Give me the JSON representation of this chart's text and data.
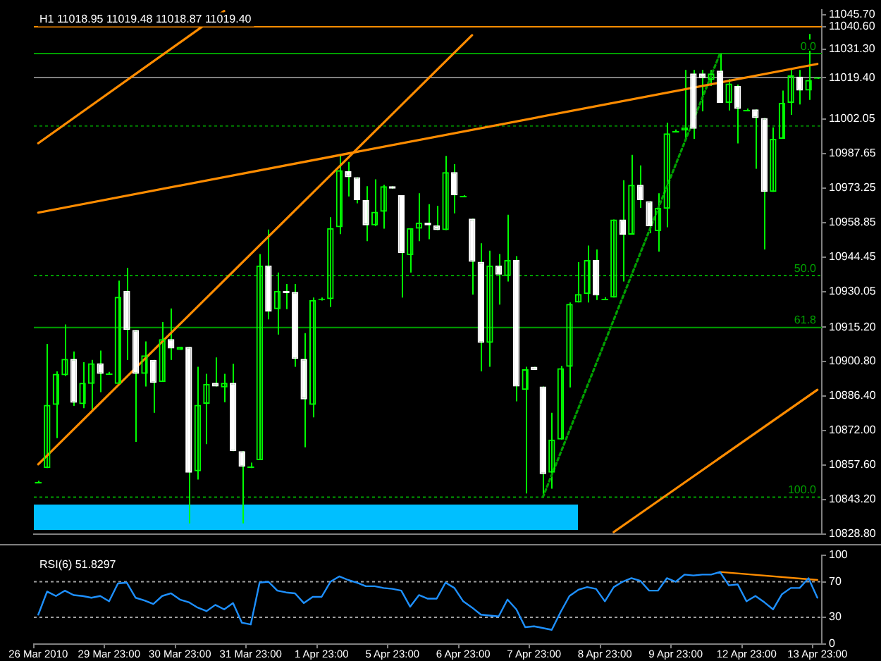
{
  "chart_data": [
    {
      "type": "candlestick",
      "title": "H1 11018.95 11019.48 11018.87 11019.40",
      "ohlc": [
        [
          10850.6,
          10851.0,
          10850.2,
          10850.6
        ],
        [
          10856.3,
          10908.2,
          10856.3,
          10882.7
        ],
        [
          10882.7,
          10896.7,
          10868.8,
          10895.7
        ],
        [
          10895.1,
          10916.3,
          10894.8,
          10901.9
        ],
        [
          10901.9,
          10905.0,
          10882.3,
          10883.6
        ],
        [
          10883.0,
          10900.5,
          10881.3,
          10891.9
        ],
        [
          10891.5,
          10901.5,
          10880.7,
          10900.1
        ],
        [
          10900.1,
          10905.4,
          10888.0,
          10895.7
        ],
        [
          10896.1,
          10896.5,
          10895.3,
          10896.1
        ],
        [
          10891.5,
          10934.6,
          10891.5,
          10927.8
        ],
        [
          10930.3,
          10940.0,
          10901.5,
          10914.0
        ],
        [
          10914.0,
          10914.0,
          10867.3,
          10895.7
        ],
        [
          10895.7,
          10909.2,
          10890.4,
          10903.4
        ],
        [
          10901.5,
          10901.5,
          10879.4,
          10891.9
        ],
        [
          10892.3,
          10917.3,
          10892.3,
          10910.2
        ],
        [
          10910.2,
          10923.0,
          10901.5,
          10906.3
        ],
        [
          10905.7,
          10906.9,
          10905.7,
          10906.9
        ],
        [
          10906.9,
          10906.9,
          10833.2,
          10854.4
        ],
        [
          10855.0,
          10898.6,
          10851.5,
          10882.7
        ],
        [
          10883.2,
          10895.7,
          10866.3,
          10891.5
        ],
        [
          10891.9,
          10902.5,
          10890.4,
          10890.4
        ],
        [
          10890.0,
          10895.7,
          10883.8,
          10891.9
        ],
        [
          10891.9,
          10899.9,
          10863.4,
          10863.4
        ],
        [
          10863.4,
          10863.4,
          10833.2,
          10856.9
        ],
        [
          10856.9,
          10858.6,
          10856.3,
          10856.9
        ],
        [
          10859.6,
          10945.7,
          10859.6,
          10940.9
        ],
        [
          10940.9,
          10955.9,
          10918.4,
          10921.7
        ],
        [
          10922.7,
          10938.0,
          10912.1,
          10930.3
        ],
        [
          10930.3,
          10933.2,
          10922.7,
          10929.4
        ],
        [
          10929.9,
          10933.2,
          10898.6,
          10901.9
        ],
        [
          10901.9,
          10912.7,
          10865.0,
          10885.0
        ],
        [
          10882.7,
          10927.5,
          10877.5,
          10926.5
        ],
        [
          10926.5,
          10927.5,
          10926.3,
          10927.1
        ],
        [
          10926.9,
          10961.1,
          10923.6,
          10956.5
        ],
        [
          10956.9,
          10987.1,
          10954.0,
          10980.7
        ],
        [
          10980.3,
          10984.2,
          10969.8,
          10977.8
        ],
        [
          10977.8,
          10977.8,
          10966.9,
          10968.2
        ],
        [
          10968.2,
          10974.0,
          10951.1,
          10957.7
        ],
        [
          10957.7,
          10976.9,
          10957.3,
          10963.4
        ],
        [
          10963.4,
          10974.6,
          10956.3,
          10974.0
        ],
        [
          10974.0,
          10974.0,
          10973.0,
          10973.0
        ],
        [
          10970.3,
          10970.3,
          10927.5,
          10946.1
        ],
        [
          10945.3,
          10956.5,
          10938.0,
          10956.5
        ],
        [
          10956.3,
          10971.1,
          10951.1,
          10958.8
        ],
        [
          10958.8,
          10966.5,
          10951.9,
          10957.7
        ],
        [
          10957.7,
          10965.9,
          10955.7,
          10955.7
        ],
        [
          10955.7,
          10986.7,
          10955.7,
          10979.9
        ],
        [
          10979.9,
          10983.2,
          10962.7,
          10970.3
        ],
        [
          10969.9,
          10970.3,
          10969.5,
          10969.9
        ],
        [
          10960.5,
          10960.5,
          10928.8,
          10942.5
        ],
        [
          10942.5,
          10950.2,
          10896.7,
          10908.6
        ],
        [
          10908.6,
          10947.1,
          10898.6,
          10940.9
        ],
        [
          10940.9,
          10945.7,
          10924.6,
          10937.1
        ],
        [
          10936.5,
          10962.1,
          10934.2,
          10943.2
        ],
        [
          10943.2,
          10944.8,
          10884.2,
          10890.4
        ],
        [
          10889.0,
          10898.6,
          10845.7,
          10897.6
        ],
        [
          10898.6,
          10898.6,
          10897.3,
          10897.3
        ],
        [
          10890.4,
          10890.4,
          10844.2,
          10853.8
        ],
        [
          10854.4,
          10879.4,
          10847.7,
          10868.2
        ],
        [
          10868.2,
          10899.0,
          10868.2,
          10898.0
        ],
        [
          10898.6,
          10925.5,
          10890.0,
          10924.9
        ],
        [
          10925.5,
          10942.3,
          10925.5,
          10929.0
        ],
        [
          10929.0,
          10949.2,
          10925.5,
          10943.2
        ],
        [
          10943.2,
          10947.6,
          10926.5,
          10928.4
        ],
        [
          10927.3,
          10927.7,
          10926.9,
          10927.3
        ],
        [
          10927.5,
          10960.1,
          10927.5,
          10960.1
        ],
        [
          10960.1,
          10976.5,
          10934.2,
          10953.8
        ],
        [
          10953.8,
          10987.1,
          10953.8,
          10974.6
        ],
        [
          10974.6,
          10982.7,
          10965.0,
          10968.2
        ],
        [
          10967.8,
          10967.8,
          10954.4,
          10957.3
        ],
        [
          10955.3,
          10971.1,
          10946.7,
          10965.0
        ],
        [
          10964.6,
          11000.5,
          10956.9,
          10996.1
        ],
        [
          10997.3,
          10997.7,
          10996.9,
          10997.3
        ],
        [
          10997.3,
          11022.6,
          10993.4,
          10998.6
        ],
        [
          11021.1,
          11022.6,
          10993.8,
          10998.0
        ],
        [
          11021.1,
          11022.6,
          11005.3,
          11019.2
        ],
        [
          11018.4,
          11022.6,
          11015.9,
          11021.1
        ],
        [
          11022.3,
          11029.4,
          11008.8,
          11008.8
        ],
        [
          11008.8,
          11018.8,
          11005.7,
          11016.9
        ],
        [
          11015.9,
          11016.5,
          10991.9,
          11006.3
        ],
        [
          11006.1,
          11006.5,
          11005.7,
          11006.1
        ],
        [
          11006.1,
          11006.1,
          10981.3,
          11002.5
        ],
        [
          11002.5,
          11002.5,
          10947.6,
          10971.7
        ],
        [
          10971.7,
          10998.6,
          10971.7,
          10993.8
        ],
        [
          10993.8,
          11014.0,
          10993.8,
          11008.8
        ],
        [
          11008.8,
          11022.6,
          11003.8,
          11020.3
        ],
        [
          11019.8,
          11022.6,
          11008.2,
          11014.0
        ],
        [
          11014.0,
          11037.6,
          11010.1,
          11018.4
        ],
        [
          11018.95,
          11019.48,
          11018.87,
          11019.4
        ]
      ],
      "color": "#00ff00",
      "colors": [
        "#00ff00",
        "#00ff00",
        "#00ff00",
        "#00ff00",
        "#ffffff",
        "#00ff00",
        "#00ff00",
        "#ffffff",
        "#00ff00",
        "#00ff00",
        "#ffffff",
        "#ffffff",
        "#00ff00",
        "#ffffff",
        "#00ff00",
        "#ffffff",
        "#00ff00",
        "#ffffff",
        "#00ff00",
        "#00ff00",
        "#ffffff",
        "#00ff00",
        "#ffffff",
        "#ffffff",
        "#00ff00",
        "#00ff00",
        "#ffffff",
        "#00ff00",
        "#ffffff",
        "#ffffff",
        "#ffffff",
        "#00ff00",
        "#00ff00",
        "#00ff00",
        "#00ff00",
        "#ffffff",
        "#ffffff",
        "#ffffff",
        "#00ff00",
        "#00ff00",
        "#ffffff",
        "#ffffff",
        "#00ff00",
        "#00ff00",
        "#ffffff",
        "#ffffff",
        "#00ff00",
        "#ffffff",
        "#00ff00",
        "#ffffff",
        "#ffffff",
        "#00ff00",
        "#ffffff",
        "#00ff00",
        "#ffffff",
        "#00ff00",
        "#ffffff",
        "#ffffff",
        "#00ff00",
        "#00ff00",
        "#00ff00",
        "#00ff00",
        "#00ff00",
        "#ffffff",
        "#00ff00",
        "#00ff00",
        "#ffffff",
        "#00ff00",
        "#ffffff",
        "#ffffff",
        "#00ff00",
        "#00ff00",
        "#00ff00",
        "#00ff00",
        "#ffffff",
        "#ffffff",
        "#00ff00",
        "#ffffff",
        "#00ff00",
        "#ffffff",
        "#00ff00",
        "#ffffff",
        "#ffffff",
        "#00ff00",
        "#00ff00",
        "#00ff00",
        "#ffffff",
        "#00ff00",
        "#00ff00"
      ],
      "series": [
        {
          "type": "line",
          "color": "#ff8c00",
          "values": [
            10992.0,
            null,
            null,
            null,
            null,
            null,
            null,
            null,
            null,
            null,
            null,
            null,
            null,
            null,
            null,
            null,
            null,
            null,
            null,
            null,
            null,
            11047.2,
            null,
            null,
            null,
            null,
            null,
            null,
            null,
            null,
            null,
            null,
            null,
            null,
            null,
            null,
            null,
            null,
            null,
            null,
            null,
            null,
            null,
            null,
            null,
            null,
            null,
            null,
            null,
            null,
            null,
            null,
            null,
            null,
            null,
            null,
            null,
            null,
            null,
            null,
            null,
            null,
            null,
            null,
            null,
            null,
            null,
            null,
            null,
            null,
            null,
            null,
            null,
            null,
            null,
            null,
            null,
            null,
            null,
            null,
            null,
            null,
            null,
            null,
            null,
            null,
            null,
            null,
            null
          ]
        },
        {
          "type": "line",
          "color": "#ff8c00",
          "values": [
            10857.9,
            null,
            null,
            null,
            null,
            null,
            null,
            null,
            null,
            null,
            null,
            null,
            null,
            null,
            null,
            null,
            null,
            null,
            null,
            null,
            null,
            null,
            null,
            null,
            null,
            null,
            null,
            null,
            null,
            null,
            null,
            null,
            null,
            null,
            null,
            null,
            null,
            null,
            null,
            null,
            null,
            null,
            null,
            null,
            null,
            null,
            null,
            null,
            null,
            11037.1,
            null,
            null,
            null,
            null,
            null,
            null,
            null,
            null,
            null,
            null,
            null,
            null,
            null,
            null,
            null,
            null,
            null,
            null,
            null,
            null,
            null,
            null,
            null,
            null,
            null,
            null,
            null,
            null,
            null,
            null,
            null,
            null,
            null,
            null,
            null,
            null,
            null,
            null,
            null
          ]
        },
        {
          "type": "line",
          "color": "#ff8c00",
          "values": [
            10963.0,
            null,
            null,
            null,
            null,
            null,
            null,
            null,
            null,
            null,
            null,
            null,
            null,
            null,
            null,
            null,
            null,
            null,
            null,
            null,
            null,
            null,
            null,
            null,
            null,
            null,
            null,
            null,
            null,
            null,
            null,
            null,
            null,
            null,
            null,
            null,
            null,
            null,
            null,
            null,
            null,
            null,
            null,
            null,
            null,
            null,
            null,
            null,
            null,
            null,
            null,
            null,
            null,
            null,
            null,
            null,
            null,
            null,
            null,
            null,
            null,
            null,
            null,
            null,
            null,
            null,
            null,
            null,
            null,
            null,
            null,
            null,
            null,
            null,
            null,
            null,
            null,
            null,
            null,
            null,
            null,
            null,
            null,
            null,
            null,
            null,
            null,
            null,
            11025.1
          ]
        },
        {
          "type": "line",
          "color": "#ff8c00",
          "values": [
            null,
            null,
            null,
            null,
            null,
            null,
            null,
            null,
            null,
            null,
            null,
            null,
            null,
            null,
            null,
            null,
            null,
            null,
            null,
            null,
            null,
            null,
            null,
            null,
            null,
            null,
            null,
            null,
            null,
            null,
            null,
            null,
            null,
            null,
            null,
            null,
            null,
            null,
            null,
            null,
            null,
            null,
            null,
            null,
            null,
            null,
            null,
            null,
            null,
            null,
            null,
            null,
            null,
            null,
            null,
            null,
            null,
            null,
            null,
            null,
            null,
            null,
            null,
            null,
            null,
            10829.6,
            null,
            null,
            null,
            null,
            null,
            null,
            null,
            null,
            null,
            null,
            null,
            null,
            null,
            null,
            null,
            null,
            null,
            null,
            null,
            null,
            null,
            null,
            10889.0
          ]
        },
        {
          "type": "line",
          "color": "#00a000",
          "line_style": "dotted",
          "values": [
            null,
            null,
            null,
            null,
            null,
            null,
            null,
            null,
            null,
            null,
            null,
            null,
            null,
            null,
            null,
            null,
            null,
            null,
            null,
            null,
            null,
            null,
            null,
            null,
            null,
            null,
            null,
            null,
            null,
            null,
            null,
            null,
            null,
            null,
            null,
            null,
            null,
            null,
            null,
            null,
            null,
            null,
            null,
            null,
            null,
            null,
            null,
            null,
            null,
            null,
            null,
            null,
            null,
            null,
            null,
            null,
            null,
            10844.2,
            null,
            null,
            null,
            null,
            null,
            null,
            null,
            null,
            null,
            null,
            null,
            null,
            null,
            null,
            null,
            null,
            null,
            null,
            null,
            11029.4,
            null,
            null,
            null,
            null,
            null,
            null,
            null,
            null,
            null,
            null,
            null
          ]
        }
      ],
      "ylim": [
        10828.6,
        11047.8
      ],
      "yticks": [
        {
          "value": 11045.7,
          "label": "11045.70"
        },
        {
          "value": 11040.6,
          "label": "11040.60"
        },
        {
          "value": 11031.3,
          "label": "11031.30"
        },
        {
          "value": 11019.4,
          "label": "11019.40"
        },
        {
          "value": 11002.05,
          "label": "11002.05"
        },
        {
          "value": 10987.65,
          "label": "10987.65"
        },
        {
          "value": 10973.25,
          "label": "10973.25"
        },
        {
          "value": 10958.85,
          "label": "10958.85"
        },
        {
          "value": 10944.45,
          "label": "10944.45"
        },
        {
          "value": 10930.05,
          "label": "10930.05"
        },
        {
          "value": 10915.2,
          "label": "10915.20"
        },
        {
          "value": 10900.8,
          "label": "10900.80"
        },
        {
          "value": 10886.4,
          "label": "10886.40"
        },
        {
          "value": 10872,
          "label": "10872.00"
        },
        {
          "value": 10857.6,
          "label": "10857.60"
        },
        {
          "value": 10843.2,
          "label": "10843.20"
        },
        {
          "value": 10828.8,
          "label": "10828.80"
        }
      ],
      "ref_lines": [
        {
          "axis": "y",
          "value": 11040.6,
          "color": "#ff8c00"
        },
        {
          "axis": "y",
          "value": 11019.4,
          "color": "#808080"
        },
        {
          "axis": "y",
          "value": 10999.2,
          "color": "#008000",
          "line_style": "dotted"
        },
        {
          "axis": "y",
          "value": 11029.4,
          "color": "#00a000"
        },
        {
          "axis": "y",
          "value": 10936.7,
          "color": "#00a000",
          "line_style": "dotted"
        },
        {
          "axis": "y",
          "value": 10915.0,
          "color": "#00a000"
        },
        {
          "axis": "y",
          "value": 10844.2,
          "color": "#00a000",
          "line_style": "dotted"
        }
      ],
      "annotations": [
        {
          "text": "0.0",
          "y": 11029.4
        },
        {
          "text": "50.0",
          "y": 10936.7
        },
        {
          "text": "61.8",
          "y": 10915.0
        },
        {
          "text": "100.0",
          "y": 10844.2
        }
      ],
      "tick_labels": "y"
    },
    {
      "type": "line",
      "title": "RSI(6) 51.8297",
      "categories": [
        "26 Mar 2010",
        null,
        null,
        null,
        null,
        null,
        null,
        null,
        "29 Mar 23:00",
        null,
        null,
        null,
        null,
        null,
        null,
        null,
        "30 Mar 23:00",
        null,
        null,
        null,
        null,
        null,
        null,
        null,
        "31 Mar 23:00",
        null,
        null,
        null,
        null,
        null,
        null,
        null,
        "1 Apr 23:00",
        null,
        null,
        null,
        null,
        null,
        null,
        null,
        "5 Apr 23:00",
        null,
        null,
        null,
        null,
        null,
        null,
        null,
        "6 Apr 23:00",
        null,
        null,
        null,
        null,
        null,
        null,
        null,
        "7 Apr 23:00",
        null,
        null,
        null,
        null,
        null,
        null,
        null,
        "8 Apr 23:00",
        null,
        null,
        null,
        null,
        null,
        null,
        null,
        "9 Apr 23:00",
        null,
        null,
        null,
        null,
        null,
        null,
        null,
        "12 Apr 23:00",
        null,
        null,
        null,
        null,
        null,
        null,
        null,
        "13 Apr 23:00"
      ],
      "series": [
        {
          "color": "#1e90ff",
          "values": [
            33,
            59,
            54,
            60,
            55,
            54,
            52,
            54,
            48,
            68,
            69,
            52,
            49,
            45,
            54,
            57,
            50,
            47,
            41,
            37,
            44,
            39,
            46,
            24,
            22,
            69,
            70,
            60,
            58,
            57,
            46,
            53,
            53,
            70,
            76,
            72,
            69,
            65,
            65,
            63,
            62,
            60,
            42,
            55,
            51,
            51,
            69,
            63,
            48,
            41,
            33,
            32,
            31,
            50,
            39,
            19,
            20,
            18,
            16,
            36,
            54,
            61,
            64,
            62,
            48,
            64,
            70,
            74,
            71,
            60,
            60,
            74,
            70,
            78,
            77,
            78,
            78,
            81,
            66,
            67,
            48,
            54,
            47,
            39,
            56,
            63,
            63,
            74,
            52
          ]
        },
        {
          "color": "#ff8c00",
          "values": [
            null,
            null,
            null,
            null,
            null,
            null,
            null,
            null,
            null,
            null,
            null,
            null,
            null,
            null,
            null,
            null,
            null,
            null,
            null,
            null,
            null,
            null,
            null,
            null,
            null,
            null,
            null,
            null,
            null,
            null,
            null,
            null,
            null,
            null,
            null,
            null,
            null,
            null,
            null,
            null,
            null,
            null,
            null,
            null,
            null,
            null,
            null,
            null,
            null,
            null,
            null,
            null,
            null,
            null,
            null,
            null,
            null,
            null,
            null,
            null,
            null,
            null,
            null,
            null,
            null,
            null,
            null,
            null,
            null,
            null,
            null,
            null,
            null,
            null,
            null,
            null,
            null,
            81,
            null,
            null,
            null,
            null,
            null,
            null,
            null,
            null,
            null,
            null,
            72
          ]
        }
      ],
      "ylim": [
        0,
        100
      ],
      "yticks": [
        0,
        30,
        70,
        100
      ],
      "ref_lines": [
        {
          "axis": "y",
          "value": 70,
          "color": "#a0a0a0",
          "line_style": "dotted"
        },
        {
          "axis": "y",
          "value": 30,
          "color": "#a0a0a0",
          "line_style": "dotted"
        }
      ]
    }
  ]
}
